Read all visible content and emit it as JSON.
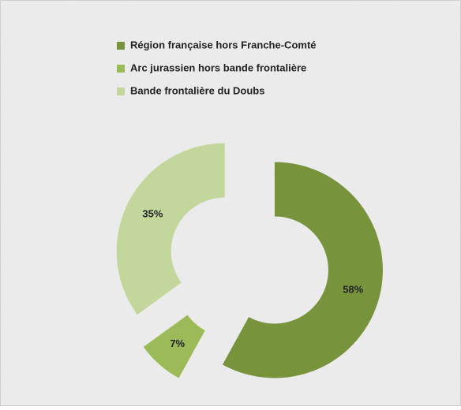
{
  "chart_data": {
    "type": "donut",
    "categories": [
      "Région française hors Franche-Comté",
      "Arc jurassien hors bande frontalière",
      "Bande frontalière du Doubs"
    ],
    "values": [
      58,
      7,
      35
    ],
    "value_labels": [
      "58%",
      "7%",
      "35%"
    ],
    "colors": [
      "#77933c",
      "#9bbb59",
      "#c3d69b"
    ],
    "legend": "top"
  }
}
